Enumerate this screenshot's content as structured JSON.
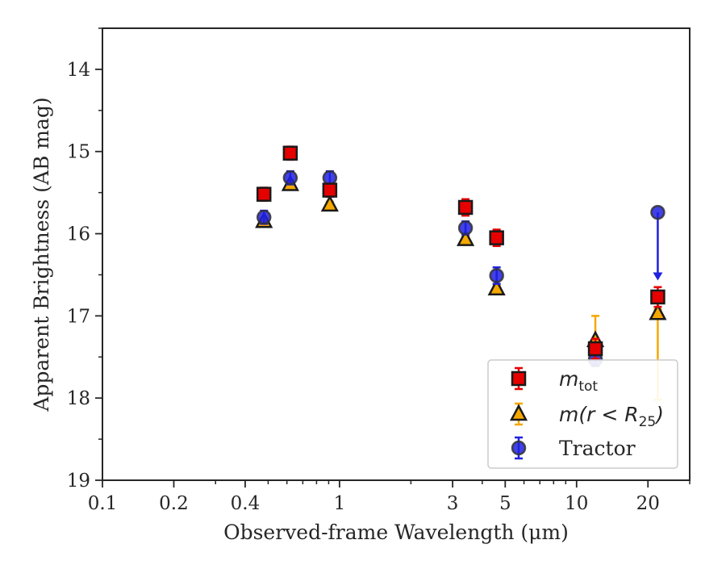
{
  "chart_data": {
    "type": "scatter",
    "title": "",
    "xlabel": "Observed-frame Wavelength (μm)",
    "ylabel": "Apparent Brightness (AB mag)",
    "xscale": "log",
    "xlim": [
      0.1,
      30
    ],
    "ylim": [
      19,
      13.5
    ],
    "y_inverted": true,
    "x_ticks": [
      0.1,
      0.2,
      0.4,
      1,
      3,
      5,
      10,
      20
    ],
    "x_tick_labels": [
      "0.1",
      "0.2",
      "0.4",
      "1",
      "3",
      "5",
      "10",
      "20"
    ],
    "y_ticks": [
      14,
      15,
      16,
      17,
      18,
      19
    ],
    "y_tick_labels": [
      "14",
      "15",
      "16",
      "17",
      "18",
      "19"
    ],
    "legend_position": "lower-right",
    "series": [
      {
        "name": "m_tot",
        "legend_label": {
          "base": "m",
          "sub": "tot"
        },
        "marker": "square",
        "color": "#e60000",
        "errorbar_color": "#e60000",
        "points": [
          {
            "x": 0.48,
            "y": 15.52,
            "err": 0.08
          },
          {
            "x": 0.62,
            "y": 15.02,
            "err": 0.08
          },
          {
            "x": 0.91,
            "y": 15.47,
            "err": 0.08
          },
          {
            "x": 3.4,
            "y": 15.68,
            "err": 0.1
          },
          {
            "x": 4.6,
            "y": 16.05,
            "err": 0.1
          },
          {
            "x": 12.0,
            "y": 17.4,
            "err": 0.12
          },
          {
            "x": 22.0,
            "y": 16.77,
            "err": 0.12
          }
        ]
      },
      {
        "name": "m(r<R_25)",
        "legend_label": {
          "prefix": "m(r < R",
          "sub": "25",
          "suffix": ")"
        },
        "marker": "triangle",
        "color": "#f5a800",
        "errorbar_color": "#f5a800",
        "points": [
          {
            "x": 0.48,
            "y": 15.85,
            "err": 0.04
          },
          {
            "x": 0.62,
            "y": 15.4,
            "err": 0.04
          },
          {
            "x": 0.91,
            "y": 15.65,
            "err": 0.04
          },
          {
            "x": 3.4,
            "y": 16.07,
            "err": 0.04
          },
          {
            "x": 4.6,
            "y": 16.67,
            "err": 0.04
          },
          {
            "x": 12.0,
            "y": 17.3,
            "err": 0.3
          },
          {
            "x": 22.0,
            "y": 16.97,
            "err_lo": 0.05,
            "err_hi": 1.05
          }
        ]
      },
      {
        "name": "Tractor",
        "legend_label": {
          "text": "Tractor"
        },
        "marker": "circle",
        "color": "#2020e0",
        "errorbar_color": "#2020e0",
        "points": [
          {
            "x": 0.48,
            "y": 15.8,
            "err": 0.08
          },
          {
            "x": 0.62,
            "y": 15.32,
            "err": 0.08
          },
          {
            "x": 0.91,
            "y": 15.32,
            "err": 0.08
          },
          {
            "x": 3.4,
            "y": 15.93,
            "err": 0.08
          },
          {
            "x": 4.6,
            "y": 16.51,
            "err": 0.1
          },
          {
            "x": 12.0,
            "y": 17.53,
            "err": 0.08
          },
          {
            "x": 22.0,
            "y": 15.74,
            "upper_limit": true,
            "arrow_to": 16.55
          }
        ]
      }
    ]
  }
}
